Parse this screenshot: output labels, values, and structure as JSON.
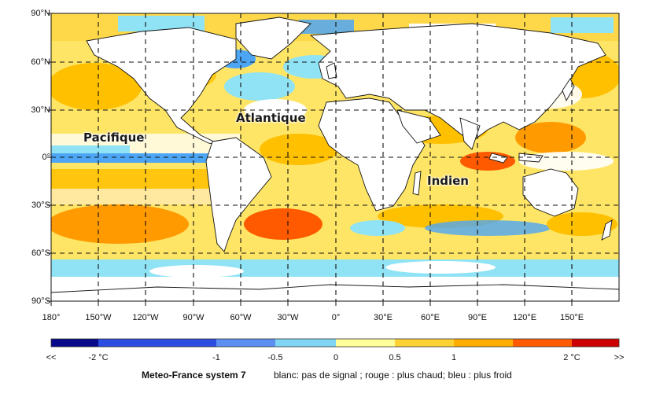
{
  "map": {
    "lat_labels": [
      "90°N",
      "60°N",
      "30°N",
      "0°",
      "30°S",
      "60°S",
      "90°S"
    ],
    "lon_labels": [
      "180°",
      "150°W",
      "120°W",
      "90°W",
      "60°W",
      "30°W",
      "0°",
      "30°E",
      "60°E",
      "90°E",
      "120°E",
      "150°E"
    ],
    "ocean_labels": {
      "pacific": "Pacifique",
      "atlantic": "Atlantique",
      "indian": "Indien"
    }
  },
  "colorbar": {
    "colors": [
      "#08088a",
      "#2a4ce0",
      "#5b8ff2",
      "#7fd6f4",
      "#ffff99",
      "#ffd233",
      "#ffae00",
      "#ff5a00",
      "#cc0000"
    ],
    "labels": {
      "far_low": "<<",
      "minus2": "-2 °C",
      "minus1": "-1",
      "minus05": "-0.5",
      "zero": "0",
      "plus05": "0.5",
      "plus1": "1",
      "plus2": "2 °C",
      "far_high": ">>"
    }
  },
  "footer": {
    "model": "Meteo-France system 7",
    "legend": "blanc: pas de signal ; rouge : plus chaud; bleu : plus froid"
  },
  "colors": {
    "land": "#ffffff",
    "warm_light": "#ffec70",
    "warm": "#ffc000",
    "warm_strong": "#ff9a00",
    "hot": "#ff5a00",
    "cold_light": "#8fe3f5",
    "cold": "#4da6f5"
  }
}
